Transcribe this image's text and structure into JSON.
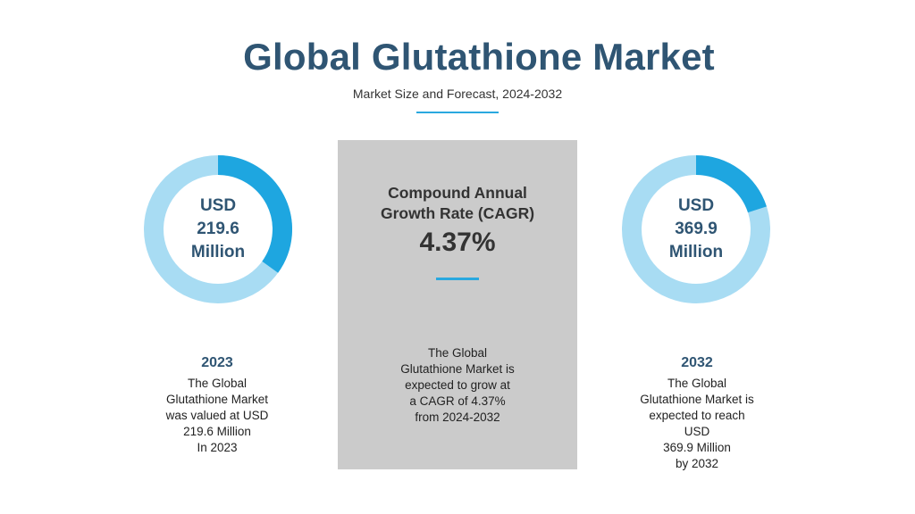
{
  "header": {
    "title": "Global Glutathione Market",
    "subtitle": "Market Size and Forecast, 2024-2032"
  },
  "colors": {
    "title": "#2f5573",
    "accent": "#29a8df",
    "ring_light": "#a8dcf3",
    "ring_dark": "#1ea6e0",
    "panel": "#cbcbcb"
  },
  "left": {
    "value_line1": "USD",
    "value_line2": "219.6",
    "value_line3": "Million",
    "ring_highlight_fraction": 0.35,
    "year": "2023",
    "desc_lines": [
      "The Global",
      "Glutathione Market",
      "was valued at USD",
      "219.6 Million",
      "In 2023"
    ]
  },
  "center": {
    "label_line1": "Compound Annual",
    "label_line2": "Growth Rate (CAGR)",
    "value": "4.37%",
    "desc_lines": [
      "The Global",
      "Glutathione Market is",
      "expected to grow at",
      "a CAGR of 4.37%",
      "from 2024-2032"
    ]
  },
  "right": {
    "value_line1": "USD",
    "value_line2": "369.9",
    "value_line3": "Million",
    "ring_highlight_fraction": 0.2,
    "year": "2032",
    "desc_lines": [
      "The Global",
      "Glutathione Market is",
      "expected to reach",
      "USD",
      "369.9 Million",
      "by 2032"
    ]
  }
}
